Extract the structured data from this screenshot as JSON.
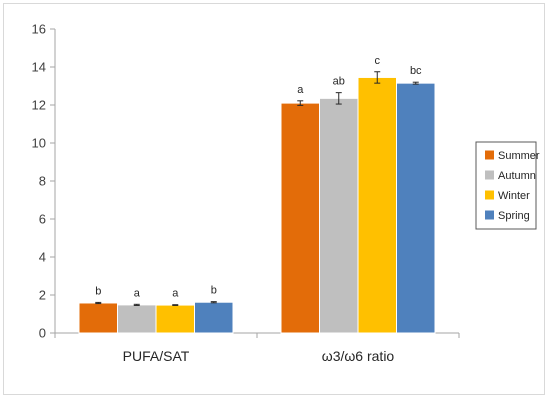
{
  "chart_data": {
    "type": "bar",
    "title": "",
    "xlabel": "",
    "ylabel": "",
    "ylim": [
      0,
      16
    ],
    "yticks": [
      0,
      2,
      4,
      6,
      8,
      10,
      12,
      14,
      16
    ],
    "grid": false,
    "legend_position": "right",
    "categories": [
      "PUFA/SAT",
      "ω3/ω6 ratio"
    ],
    "series": [
      {
        "name": "Summer",
        "color": "#e36c09",
        "values": [
          1.58,
          12.1
        ],
        "errors": [
          0.03,
          0.12
        ],
        "letters": [
          "b",
          "a"
        ]
      },
      {
        "name": "Autumn",
        "color": "#bfbfbf",
        "values": [
          1.48,
          12.35
        ],
        "errors": [
          0.03,
          0.3
        ],
        "letters": [
          "a",
          "ab"
        ]
      },
      {
        "name": "Winter",
        "color": "#ffc000",
        "values": [
          1.47,
          13.45
        ],
        "errors": [
          0.02,
          0.3
        ],
        "letters": [
          "a",
          "c"
        ]
      },
      {
        "name": "Spring",
        "color": "#4f81bd",
        "values": [
          1.62,
          13.15
        ],
        "errors": [
          0.03,
          0.05
        ],
        "letters": [
          "b",
          "bc"
        ]
      }
    ]
  }
}
